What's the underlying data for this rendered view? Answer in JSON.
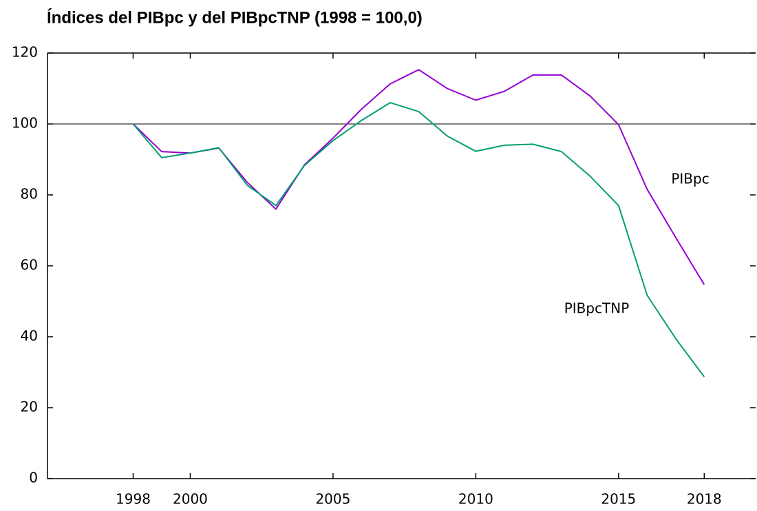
{
  "chart_data": {
    "type": "line",
    "title": "Índices del PIBpc y del PIBpcTNP (1998 = 100,0)",
    "x": [
      1998,
      1999,
      2000,
      2001,
      2002,
      2003,
      2004,
      2005,
      2006,
      2007,
      2008,
      2009,
      2010,
      2011,
      2012,
      2013,
      2014,
      2015,
      2016,
      2017,
      2018
    ],
    "series": [
      {
        "name": "PIBpc",
        "color": "#9400d3",
        "values": [
          100,
          92.2,
          91.8,
          93.2,
          83.5,
          76,
          88.5,
          96,
          104.2,
          111.3,
          115.3,
          110,
          106.7,
          109.2,
          113.8,
          113.8,
          107.9,
          99.8,
          81.6,
          68,
          54.7
        ]
      },
      {
        "name": "PIBpcTNP",
        "color": "#009e73",
        "values": [
          100,
          90.5,
          91.8,
          93.3,
          82.7,
          77,
          88.3,
          95.3,
          101,
          106,
          103.5,
          96.6,
          92.3,
          94,
          94.3,
          92.2,
          85.3,
          77,
          51.7,
          39.5,
          28.7
        ]
      }
    ],
    "xlim": [
      1995,
      2019.8
    ],
    "xticks": [
      1998,
      2000,
      2005,
      2010,
      2015,
      2018
    ],
    "ylim": [
      0,
      120
    ],
    "yticks": [
      0,
      20,
      40,
      60,
      80,
      100,
      120
    ],
    "reference_line": 100
  }
}
